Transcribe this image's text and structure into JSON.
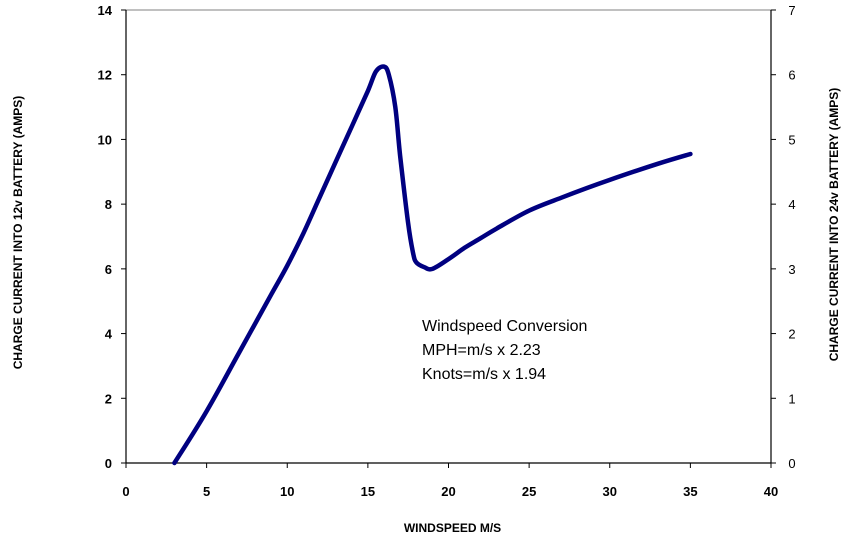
{
  "chart_data": {
    "type": "line",
    "xlabel": "WINDSPEED M/S",
    "ylabel": "CHARGE CURRENT INTO 12v BATTERY (AMPS)",
    "y2label": "CHARGE CURRENT INTO 24v BATTERY (AMPS)",
    "xlim": [
      0,
      40
    ],
    "ylim": [
      0,
      14
    ],
    "y2lim": [
      0,
      7
    ],
    "xticks": [
      0,
      5,
      10,
      15,
      20,
      25,
      30,
      35,
      40
    ],
    "yticks": [
      0,
      2,
      4,
      6,
      8,
      10,
      12,
      14
    ],
    "y2ticks": [
      0,
      1,
      2,
      3,
      4,
      5,
      6,
      7
    ],
    "grid": false,
    "series_color": "#000080",
    "series": [
      {
        "x": [
          3,
          5,
          7,
          9,
          10,
          11,
          12,
          13,
          14,
          15,
          15.5,
          16,
          16.3,
          16.7,
          17,
          17.5,
          17.8,
          18,
          18.5,
          19,
          20,
          21,
          22,
          23,
          25,
          27,
          30,
          33,
          35
        ],
        "y": [
          0,
          1.6,
          3.4,
          5.2,
          6.1,
          7.1,
          8.2,
          9.3,
          10.4,
          11.5,
          12.1,
          12.25,
          12.0,
          11.0,
          9.5,
          7.4,
          6.5,
          6.2,
          6.05,
          6.0,
          6.3,
          6.65,
          6.95,
          7.25,
          7.8,
          8.2,
          8.75,
          9.25,
          9.55
        ]
      }
    ],
    "annotation": {
      "lines": [
        "Windspeed Conversion",
        "MPH=m/s x 2.23",
        "Knots=m/s x 1.94"
      ]
    }
  }
}
